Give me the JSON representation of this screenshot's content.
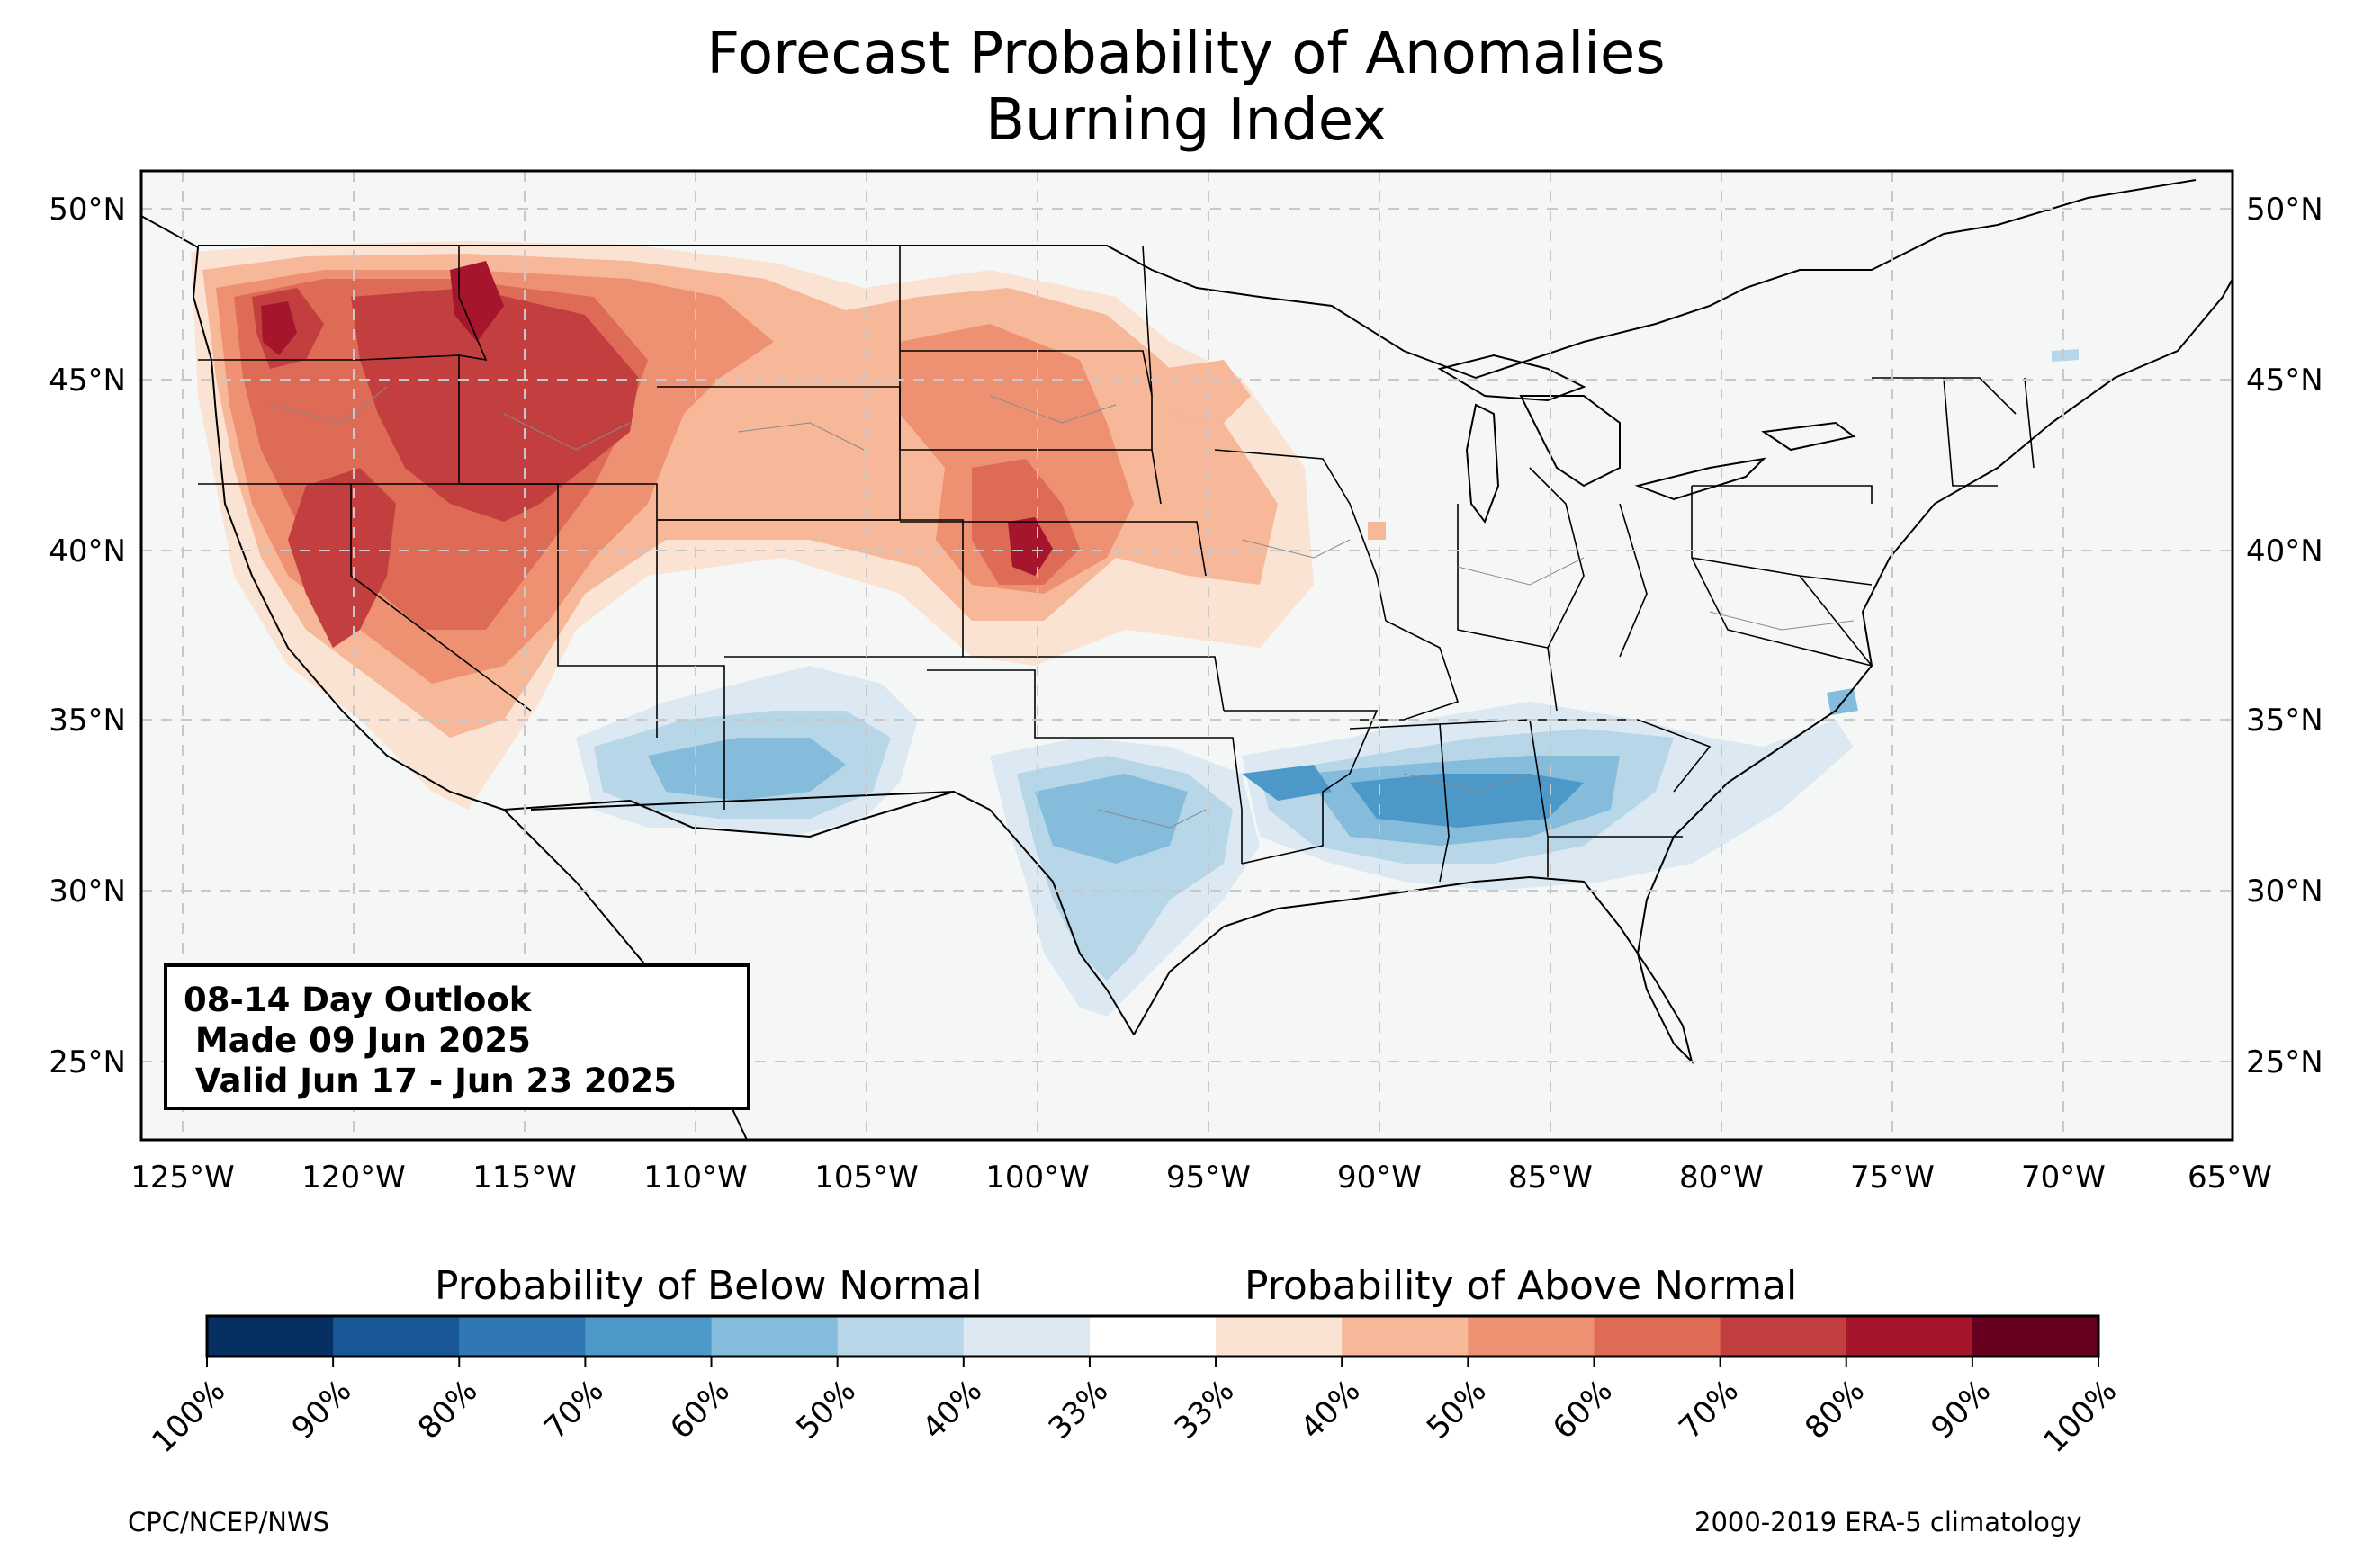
{
  "title_line1": "Forecast Probability of Anomalies",
  "title_line2": "Burning Index",
  "lat_labels": [
    "50°N",
    "45°N",
    "40°N",
    "35°N",
    "30°N",
    "25°N"
  ],
  "lon_labels": [
    "125°W",
    "120°W",
    "115°W",
    "110°W",
    "105°W",
    "100°W",
    "95°W",
    "90°W",
    "85°W",
    "80°W",
    "75°W",
    "70°W",
    "65°W"
  ],
  "outlook": {
    "line1": "08-14 Day Outlook",
    "line2": " Made 09 Jun 2025",
    "line3": " Valid Jun 17 - Jun 23 2025"
  },
  "colorbar": {
    "below_title": "Probability of Below Normal",
    "above_title": "Probability of Above Normal",
    "tick_labels": [
      "100%",
      "90%",
      "80%",
      "70%",
      "60%",
      "50%",
      "40%",
      "33%",
      "33%",
      "40%",
      "50%",
      "60%",
      "70%",
      "80%",
      "90%",
      "100%"
    ],
    "colors": [
      "#053061",
      "#1a5796",
      "#2f78b4",
      "#4c98c8",
      "#86bcdb",
      "#b7d6e8",
      "#dce9f2",
      "#ffffff",
      "#fbe3d4",
      "#f7b799",
      "#ee9172",
      "#dd6b56",
      "#c33e3e",
      "#a5152b",
      "#67001f"
    ]
  },
  "credit_left": "CPC/NCEP/NWS",
  "credit_right": "2000-2019 ERA-5 climatology",
  "map_regions": {
    "above_normal_areas": [
      "Pacific Northwest",
      "Northern Rockies",
      "Great Basin",
      "California",
      "Northern Plains",
      "Central Plains"
    ],
    "below_normal_areas": [
      "Southwest",
      "Southern Plains",
      "Texas",
      "Lower Mississippi Valley",
      "Southeast",
      "Mid-Atlantic coast"
    ]
  }
}
